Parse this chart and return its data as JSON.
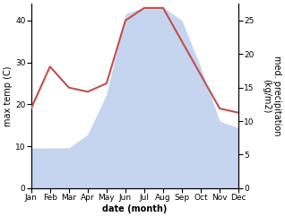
{
  "months": [
    "Jan",
    "Feb",
    "Mar",
    "Apr",
    "May",
    "Jun",
    "Jul",
    "Aug",
    "Sep",
    "Oct",
    "Nov",
    "Dec"
  ],
  "month_positions": [
    0,
    1,
    2,
    3,
    4,
    5,
    6,
    7,
    8,
    9,
    10,
    11
  ],
  "max_temp": [
    19,
    29,
    24,
    23,
    25,
    40,
    43,
    43,
    35,
    27,
    19,
    18
  ],
  "precipitation": [
    6,
    6,
    6,
    8,
    14,
    26,
    27,
    27,
    25,
    18,
    10,
    9
  ],
  "temp_color": "#c0504d",
  "precip_fill_color": "#c5d5f0",
  "ylabel_left": "max temp (C)",
  "ylabel_right": "med. precipitation\n(kg/m2)",
  "xlabel": "date (month)",
  "ylim_left": [
    0,
    44
  ],
  "ylim_right": [
    0,
    27.5
  ],
  "yticks_left": [
    0,
    10,
    20,
    30,
    40
  ],
  "yticks_right": [
    0,
    5,
    10,
    15,
    20,
    25
  ],
  "background_color": "#ffffff",
  "label_fontsize": 7,
  "tick_fontsize": 6.5
}
